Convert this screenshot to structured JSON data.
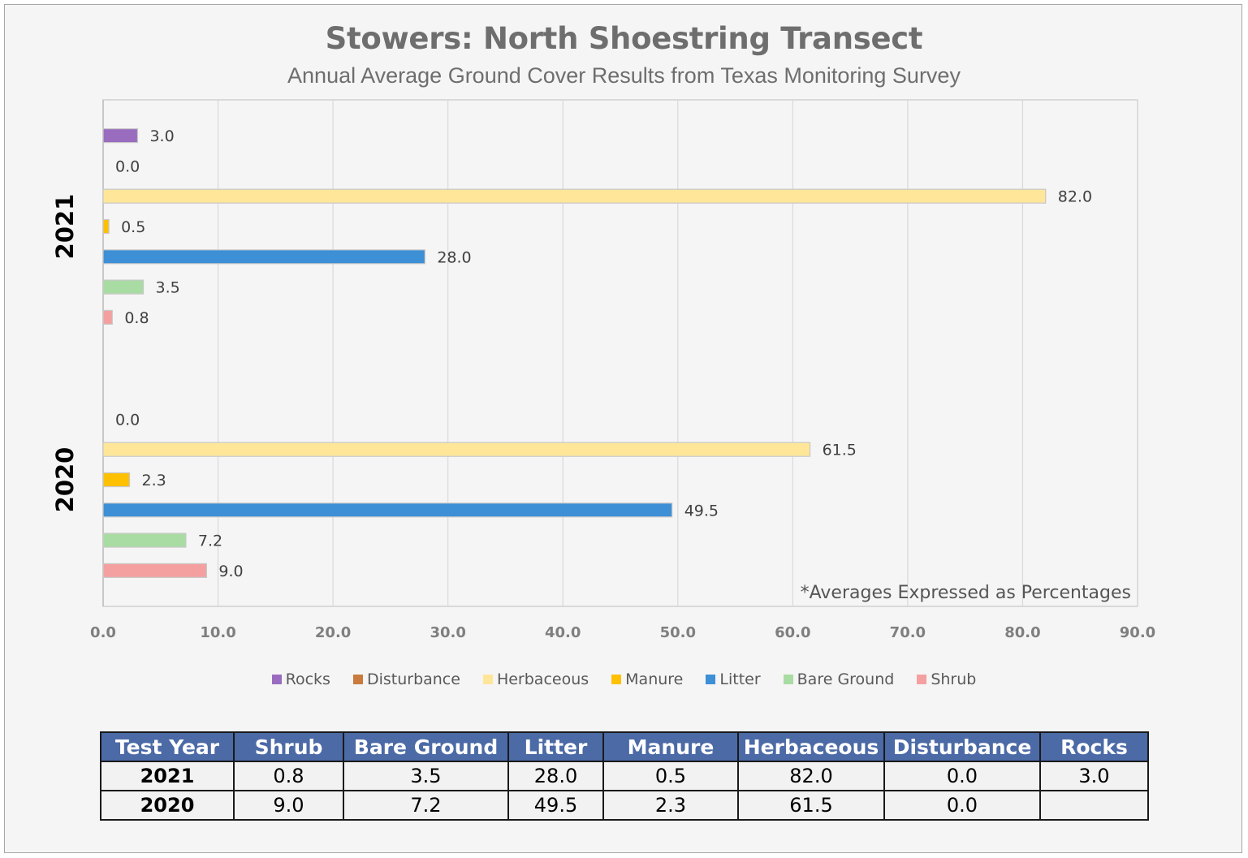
{
  "chart_data": {
    "type": "bar",
    "orientation": "horizontal",
    "title": "Stowers: North Shoestring Transect",
    "subtitle": "Annual Average Ground Cover Results from Texas Monitoring Survey",
    "note": "*Averages Expressed as Percentages",
    "categories": [
      "2021",
      "2020"
    ],
    "series": [
      {
        "name": "Rocks",
        "color": "#9a6cbf",
        "values": [
          3.0,
          null
        ],
        "labels": [
          "3.0",
          null
        ]
      },
      {
        "name": "Disturbance",
        "color": "#c97a3c",
        "values": [
          0.0,
          0.0
        ],
        "labels": [
          "0.0",
          "0.0"
        ]
      },
      {
        "name": "Herbaceous",
        "color": "#ffe699",
        "values": [
          82.0,
          61.5
        ],
        "labels": [
          "82.0",
          "61.5"
        ]
      },
      {
        "name": "Manure",
        "color": "#ffc000",
        "values": [
          0.5,
          2.3
        ],
        "labels": [
          "0.5",
          "2.3"
        ]
      },
      {
        "name": "Litter",
        "color": "#3d8fd6",
        "values": [
          28.0,
          49.5
        ],
        "labels": [
          "28.0",
          "49.5"
        ]
      },
      {
        "name": "Bare Ground",
        "color": "#a9dca3",
        "values": [
          3.5,
          7.2
        ],
        "labels": [
          "3.5",
          "7.2"
        ]
      },
      {
        "name": "Shrub",
        "color": "#f4a0a0",
        "values": [
          0.8,
          9.0
        ],
        "labels": [
          "0.8",
          "9.0"
        ]
      }
    ],
    "xlim": [
      0,
      90
    ],
    "xticks": [
      "0.0",
      "10.0",
      "20.0",
      "30.0",
      "40.0",
      "50.0",
      "60.0",
      "70.0",
      "80.0",
      "90.0"
    ],
    "grid": true,
    "legend_position": "bottom"
  },
  "table": {
    "headers": [
      "Test Year",
      "Shrub",
      "Bare Ground",
      "Litter",
      "Manure",
      "Herbaceous",
      "Disturbance",
      "Rocks"
    ],
    "rows": [
      [
        "2021",
        "0.8",
        "3.5",
        "28.0",
        "0.5",
        "82.0",
        "0.0",
        "3.0"
      ],
      [
        "2020",
        "9.0",
        "7.2",
        "49.5",
        "2.3",
        "61.5",
        "0.0",
        ""
      ]
    ]
  }
}
